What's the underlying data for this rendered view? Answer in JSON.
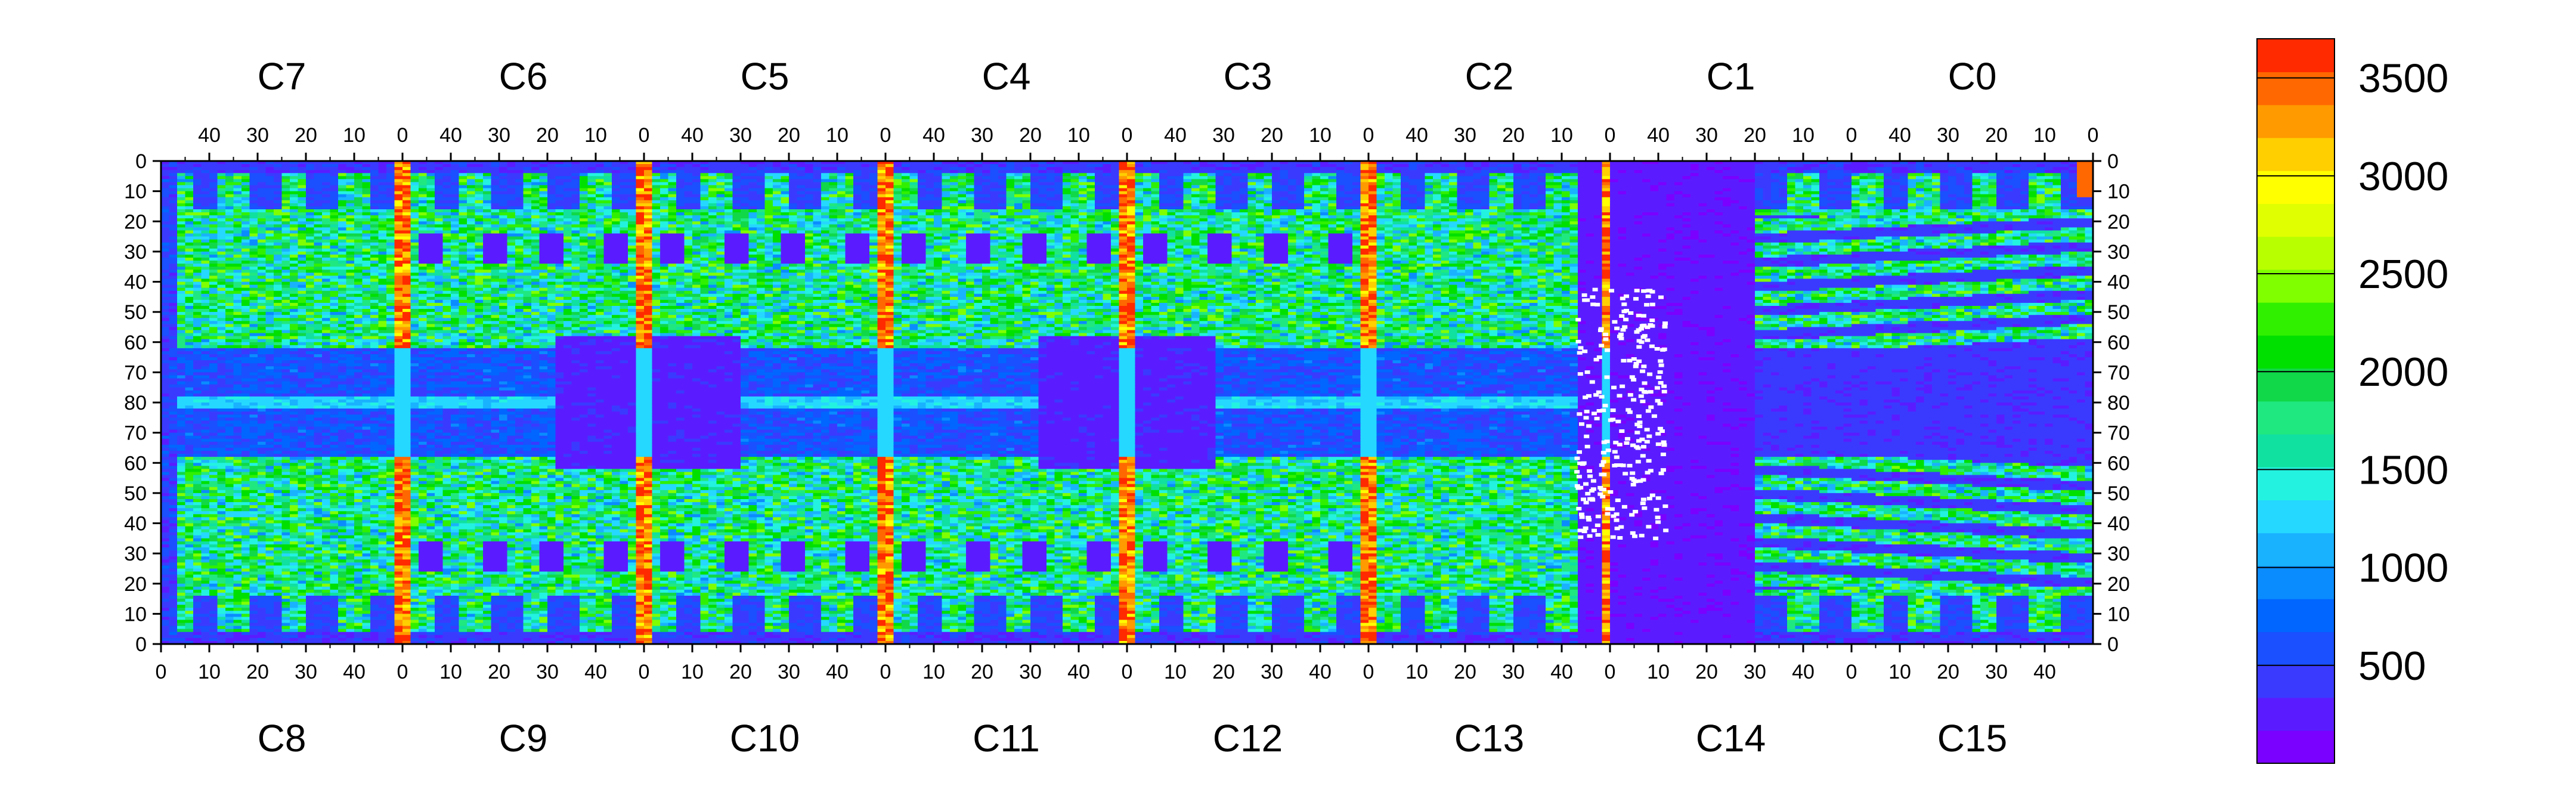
{
  "chart_data": {
    "type": "heatmap",
    "title": "",
    "xlabel": "",
    "ylabel": "",
    "grid": false,
    "legend": "right",
    "top_chip_labels": [
      "C7",
      "C6",
      "C5",
      "C4",
      "C3",
      "C2",
      "C1",
      "C0"
    ],
    "bottom_chip_labels": [
      "C8",
      "C9",
      "C10",
      "C11",
      "C12",
      "C13",
      "C14",
      "C15"
    ],
    "top_x_ticks": [
      "40",
      "30",
      "20",
      "10",
      "0"
    ],
    "bottom_x_ticks": [
      "0",
      "10",
      "20",
      "30",
      "40"
    ],
    "y_ticks_top_half": [
      "0",
      "10",
      "20",
      "30",
      "40",
      "50",
      "60",
      "70",
      "80"
    ],
    "y_ticks_bottom_half": [
      "70",
      "60",
      "50",
      "40",
      "30",
      "20",
      "10",
      "0"
    ],
    "colorbar": {
      "range": [
        0,
        3700
      ],
      "tick_values": [
        500,
        1000,
        1500,
        2000,
        2500,
        3000,
        3500
      ],
      "tick_labels": [
        "500",
        "1000",
        "1500",
        "2000",
        "2500",
        "3000",
        "3500"
      ],
      "colors": [
        "#7a00ff",
        "#5a1cff",
        "#3a3aff",
        "#1a50ff",
        "#0066ff",
        "#0a8cff",
        "#19b2ff",
        "#25d8ff",
        "#23f2e0",
        "#10e0a0",
        "#20e880",
        "#10d848",
        "#00e000",
        "#30f000",
        "#80ff00",
        "#b8ff00",
        "#e0ff00",
        "#ffff00",
        "#ffcf00",
        "#ff9a00",
        "#ff6800",
        "#ff2a00"
      ]
    },
    "regions": {
      "background_value": 1700,
      "row_band_value": 1250,
      "readout_column_value": 3400,
      "dead_region_value": 150,
      "c13_c14_low_region_value": 300,
      "corner_hot_value": 3500
    }
  }
}
